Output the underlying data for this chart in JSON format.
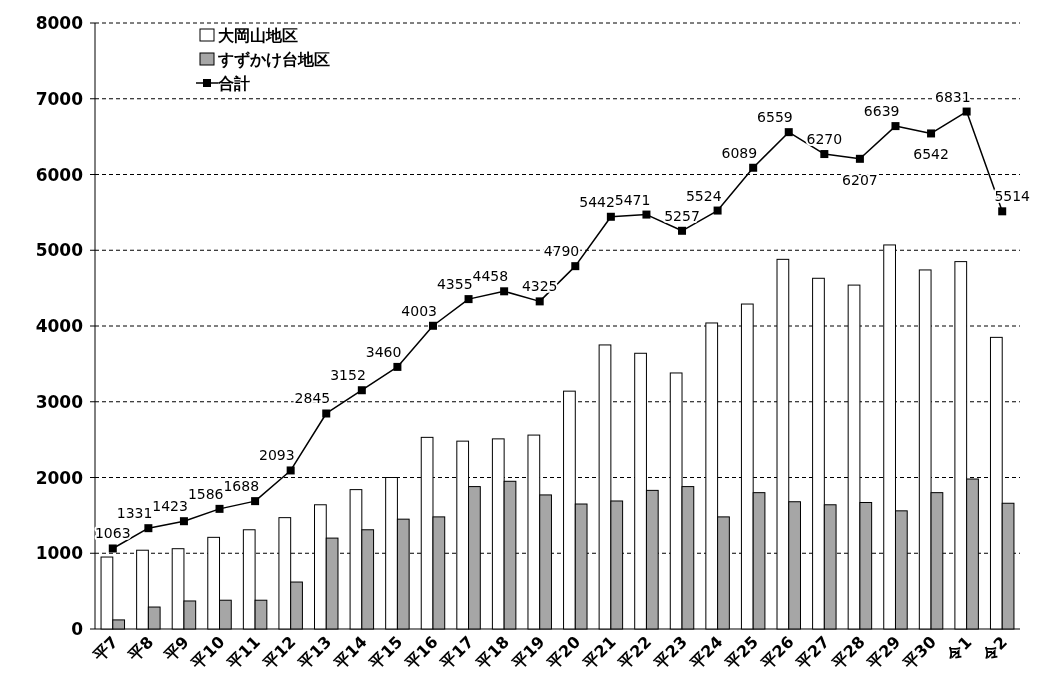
{
  "chart_data": {
    "type": "bar",
    "categories": [
      "平7",
      "平8",
      "平9",
      "平10",
      "平11",
      "平12",
      "平13",
      "平14",
      "平15",
      "平16",
      "平17",
      "平18",
      "平19",
      "平20",
      "平21",
      "平22",
      "平23",
      "平24",
      "平25",
      "平26",
      "平27",
      "平28",
      "平29",
      "平30",
      "令1",
      "令2"
    ],
    "series": [
      {
        "name": "大岡山地区",
        "color": "#ffffff",
        "values": [
          950,
          1040,
          1060,
          1210,
          1310,
          1470,
          1640,
          1840,
          2000,
          2530,
          2480,
          2510,
          2560,
          3140,
          3750,
          3640,
          3380,
          4040,
          4290,
          4880,
          4630,
          4540,
          5070,
          4740,
          4850,
          3850
        ]
      },
      {
        "name": "すずかけ台地区",
        "color": "#a6a6a6",
        "values": [
          120,
          290,
          370,
          380,
          380,
          620,
          1200,
          1310,
          1450,
          1480,
          1880,
          1950,
          1770,
          1650,
          1690,
          1830,
          1880,
          1480,
          1800,
          1680,
          1640,
          1670,
          1560,
          1800,
          1980,
          1660
        ]
      },
      {
        "name": "合計",
        "type": "line",
        "color": "#000000",
        "marker": "square",
        "values": [
          1063,
          1331,
          1423,
          1586,
          1688,
          2093,
          2845,
          3152,
          3460,
          4003,
          4355,
          4458,
          4325,
          4790,
          5442,
          5471,
          5257,
          5524,
          6089,
          6559,
          6270,
          6207,
          6639,
          6542,
          6831,
          5514
        ],
        "value_labels": [
          "1063",
          "1331",
          "1423",
          "1586",
          "1688",
          "2093",
          "2845",
          "3152",
          "3460",
          "4003",
          "4355",
          "4458",
          "4325",
          "4790",
          "5442",
          "5471",
          "5257",
          "5524",
          "6089",
          "6559",
          "6270",
          "6207",
          "6639",
          "6542",
          "6831",
          "5514"
        ]
      }
    ],
    "ylim": [
      0,
      8000
    ],
    "yticks": [
      0,
      1000,
      2000,
      3000,
      4000,
      5000,
      6000,
      7000,
      8000
    ],
    "grid": "y",
    "legend": "top left"
  }
}
